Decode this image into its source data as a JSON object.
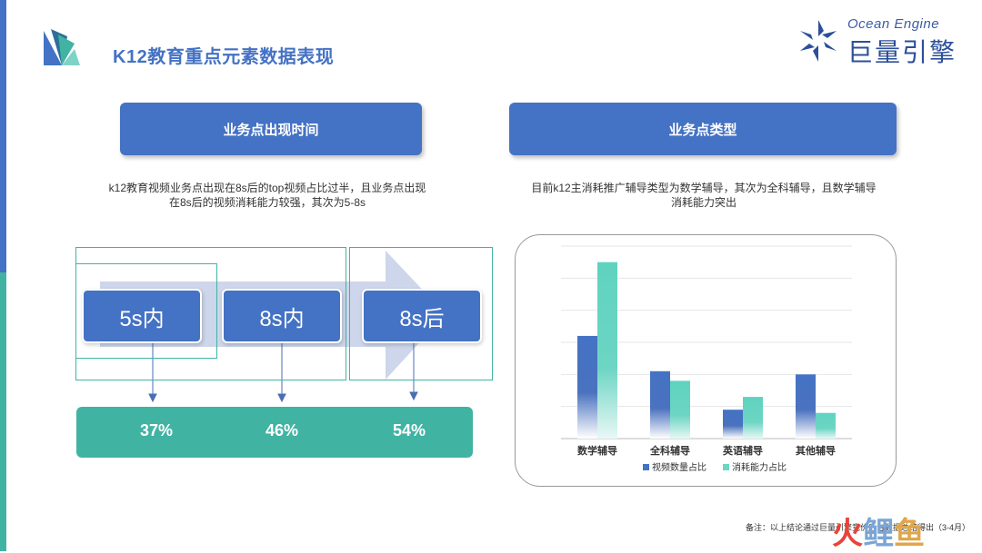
{
  "slide": {
    "title": "K12教育重点元素数据表现"
  },
  "brand": {
    "en": "Ocean Engine",
    "cn": "巨量引擎"
  },
  "left": {
    "header": "业务点出现时间",
    "desc_line1": "k12教育视频业务点出现在8s后的top视频占比过半，且业务点出现",
    "desc_line2": "在8s后的视频消耗能力较强，其次为5-8s",
    "time_labels": [
      "5s内",
      "8s内",
      "8s后"
    ],
    "percents": [
      "37%",
      "46%",
      "54%"
    ]
  },
  "right": {
    "header": "业务点类型",
    "desc_line1": "目前k12主消耗推广辅导类型为数学辅导，其次为全科辅导，且数学辅导",
    "desc_line2": "消耗能力突出"
  },
  "colors": {
    "blue": "#4472c4",
    "teal": "#41b3a3",
    "bar_teal": "#6dd5c4"
  },
  "chart_data": {
    "type": "bar",
    "categories": [
      "数学辅导",
      "全科辅导",
      "英语辅导",
      "其他辅导"
    ],
    "series": [
      {
        "name": "视频数量占比",
        "values": [
          32,
          21,
          9,
          20
        ]
      },
      {
        "name": "消耗能力占比",
        "values": [
          55,
          18,
          13,
          8
        ]
      }
    ],
    "ylim": [
      0,
      60
    ],
    "grid": true,
    "legend": "bottom"
  },
  "footnote": "备注：以上结论通过巨量引擎竞价后台数据总结得出（3-4月）",
  "watermark": {
    "a": "火",
    "b": "鲤",
    "c": "鱼"
  }
}
